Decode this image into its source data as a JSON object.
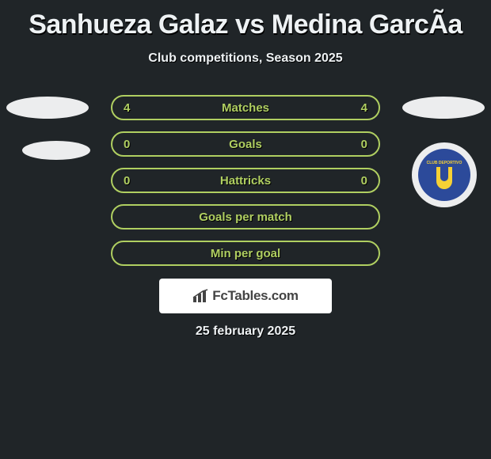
{
  "title": "Sanhueza Galaz vs Medina GarcÃa",
  "subtitle": "Club competitions, Season 2025",
  "rows": [
    {
      "label": "Matches",
      "left": "4",
      "right": "4",
      "border": "#b0cf61",
      "text": "#b0cf61"
    },
    {
      "label": "Goals",
      "left": "0",
      "right": "0",
      "border": "#b0cf61",
      "text": "#b0cf61"
    },
    {
      "label": "Hattricks",
      "left": "0",
      "right": "0",
      "border": "#b0cf61",
      "text": "#b0cf61"
    },
    {
      "label": "Goals per match",
      "left": "",
      "right": "",
      "border": "#b0cf61",
      "text": "#b0cf61"
    },
    {
      "label": "Min per goal",
      "left": "",
      "right": "",
      "border": "#b0cf61",
      "text": "#b0cf61"
    }
  ],
  "avatars": {
    "left_bg": "#ecedee",
    "right_bg": "#ecedee"
  },
  "club": {
    "outer_bg": "#ecedee",
    "inner_bg": "#2c4a9a",
    "accent": "#f6d135",
    "label_top": "CLUB DEPORTIVO"
  },
  "attribution": {
    "brand": "FcTables.com"
  },
  "attrib_date": "25 february 2025",
  "colors": {
    "page_bg": "#202528",
    "title_color": "#eef2f4",
    "pill_border": "#b0cf61",
    "pill_text": "#b0cf61"
  }
}
